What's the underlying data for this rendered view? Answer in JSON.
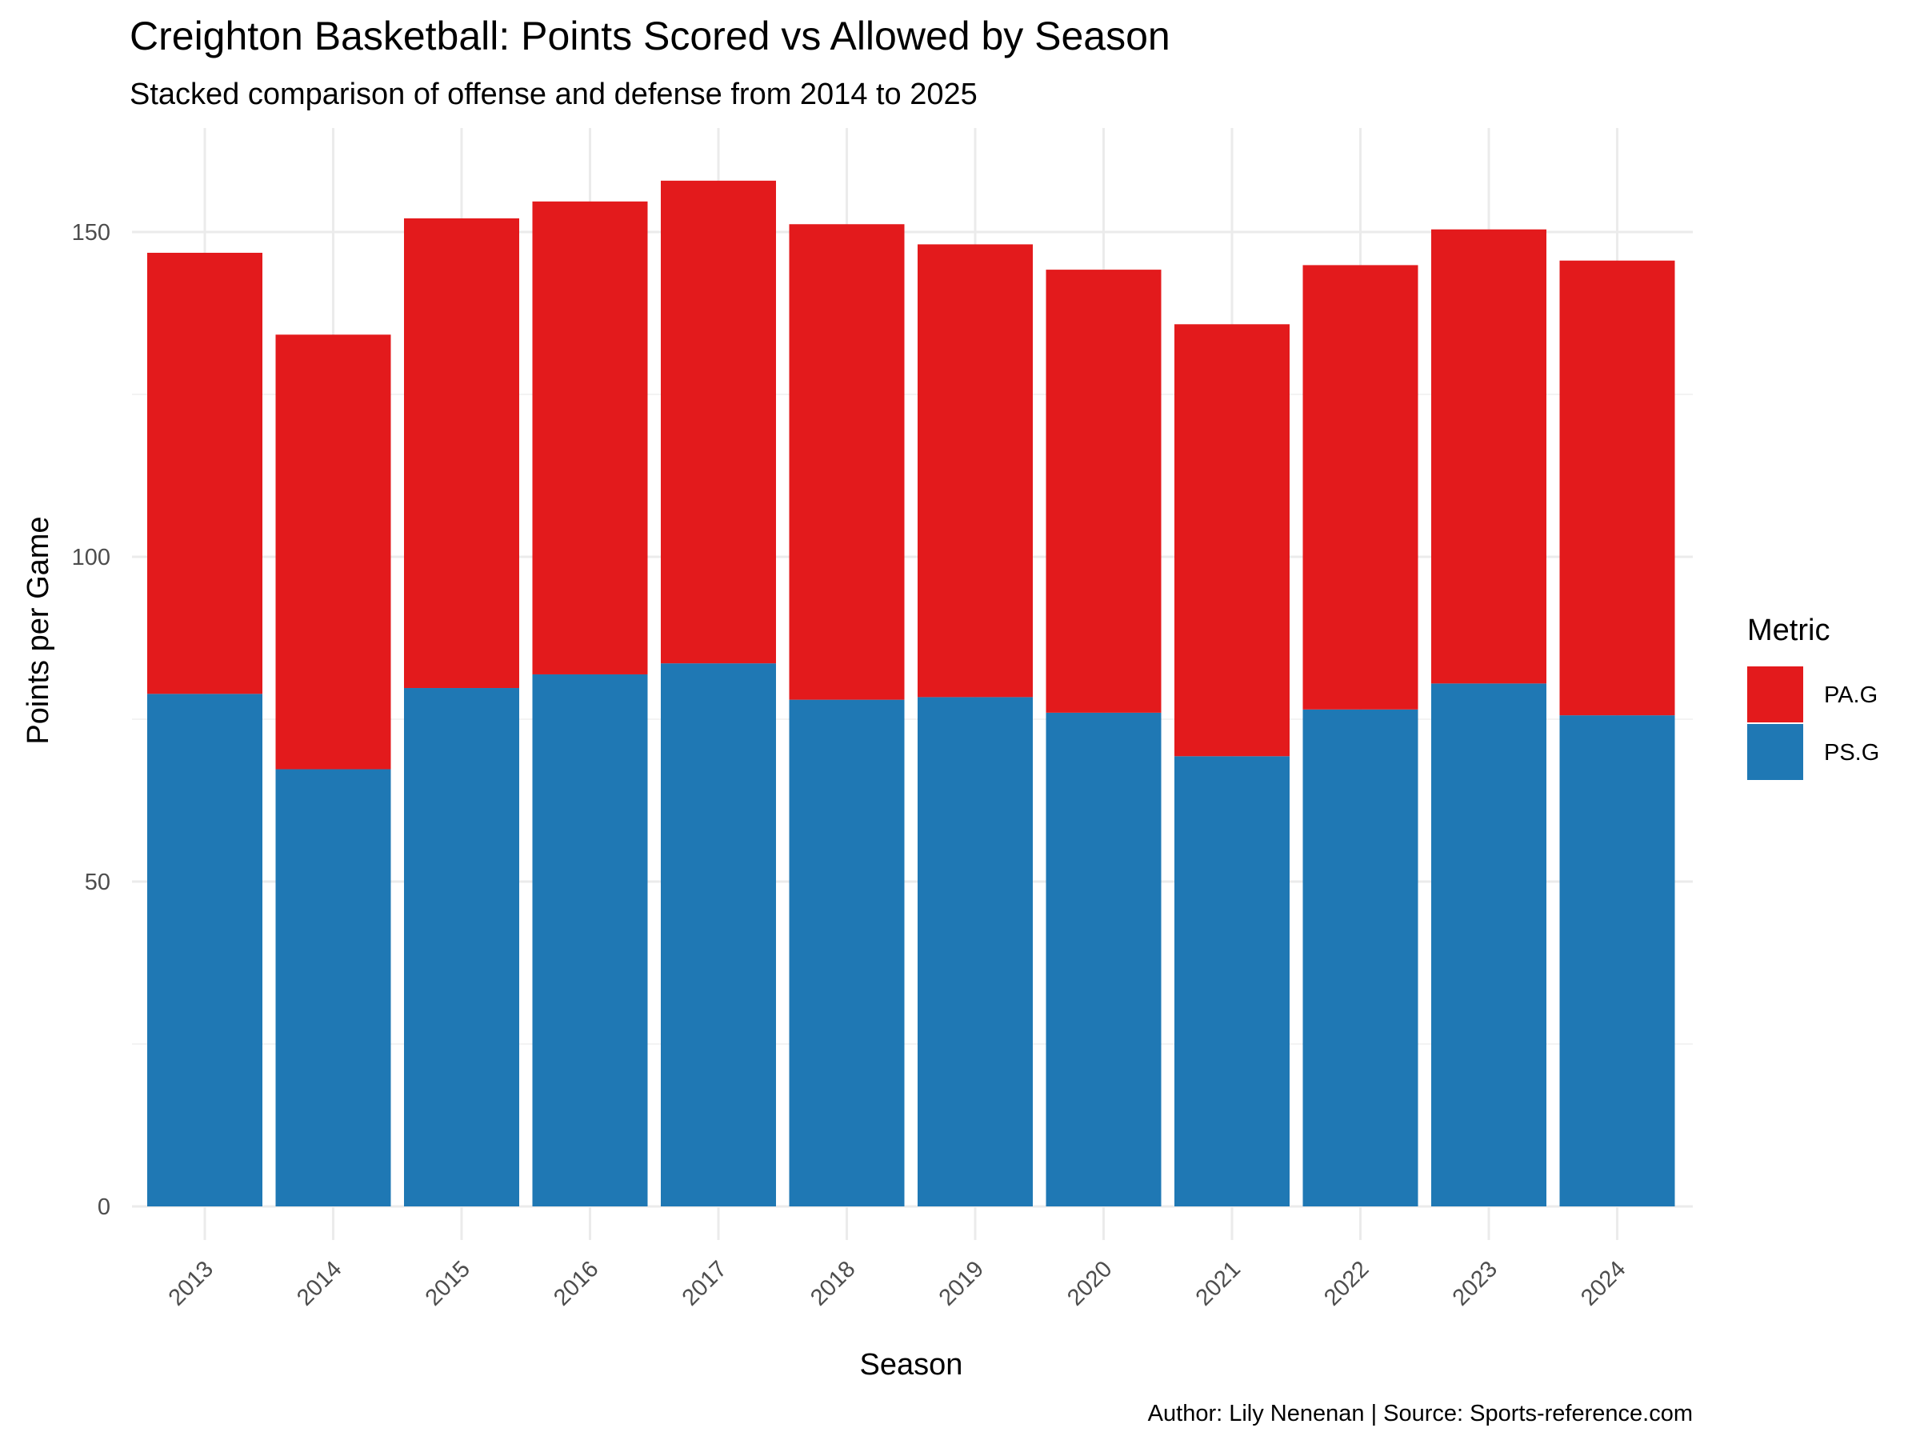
{
  "chart_data": {
    "type": "bar",
    "stacked": true,
    "title": "Creighton Basketball: Points Scored vs Allowed by Season",
    "subtitle": "Stacked comparison of offense and defense from 2014 to 2025",
    "xlabel": "Season",
    "ylabel": "Points per Game",
    "caption": "Author: Lily Nenenan | Source: Sports-reference.com",
    "categories": [
      "2013",
      "2014",
      "2015",
      "2016",
      "2017",
      "2018",
      "2019",
      "2020",
      "2021",
      "2022",
      "2023",
      "2024"
    ],
    "series": [
      {
        "name": "PS.G",
        "color": "#1f78b4",
        "values": [
          78.9,
          67.3,
          79.8,
          81.9,
          83.6,
          78.0,
          78.4,
          76.0,
          69.3,
          76.5,
          80.5,
          75.6
        ]
      },
      {
        "name": "PA.G",
        "color": "#e31a1c",
        "values": [
          67.9,
          66.9,
          72.3,
          72.8,
          74.3,
          73.2,
          69.7,
          68.2,
          66.5,
          68.4,
          69.9,
          70.0
        ]
      }
    ],
    "ylim": [
      0,
      160
    ],
    "yticks": [
      0,
      50,
      100,
      150
    ],
    "grid": true,
    "legend": {
      "title": "Metric",
      "position": "right",
      "entries": [
        "PA.G",
        "PS.G"
      ]
    }
  }
}
